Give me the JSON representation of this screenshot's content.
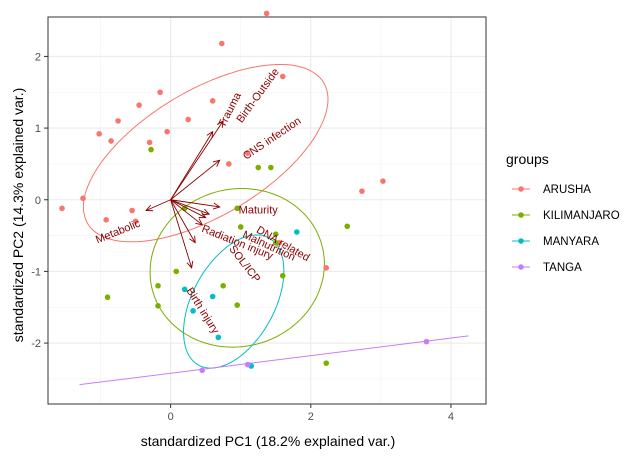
{
  "chart_data": {
    "type": "scatter",
    "subtype": "pca-biplot",
    "title": "",
    "xlabel": "standardized PC1 (18.2% explained var.)",
    "ylabel": "standardized PC2 (14.3% explained var.)",
    "xlim": [
      -1.75,
      4.5
    ],
    "ylim": [
      -2.85,
      2.55
    ],
    "xticks": [
      0,
      2,
      4
    ],
    "yticks": [
      -2,
      -1,
      0,
      1,
      2
    ],
    "grid": true,
    "legend_title": "groups",
    "legend_position": "right",
    "groups": [
      {
        "name": "ARUSHA",
        "color": "#F8766D",
        "points": [
          [
            1.37,
            2.6
          ],
          [
            0.73,
            2.18
          ],
          [
            1.6,
            1.72
          ],
          [
            -0.15,
            1.5
          ],
          [
            -0.45,
            1.32
          ],
          [
            0.6,
            1.38
          ],
          [
            0.25,
            1.12
          ],
          [
            -0.75,
            1.1
          ],
          [
            -1.02,
            0.92
          ],
          [
            -0.85,
            0.82
          ],
          [
            -0.3,
            0.8
          ],
          [
            -0.05,
            0.95
          ],
          [
            1.1,
            0.65
          ],
          [
            0.83,
            0.5
          ],
          [
            3.03,
            0.26
          ],
          [
            2.73,
            0.12
          ],
          [
            -1.25,
            0.02
          ],
          [
            -0.55,
            -0.15
          ],
          [
            -1.55,
            -0.12
          ],
          [
            -0.92,
            -0.28
          ],
          [
            -0.5,
            -0.3
          ],
          [
            1.55,
            -0.6
          ],
          [
            2.22,
            -0.95
          ]
        ]
      },
      {
        "name": "KILIMANJARO",
        "color": "#7CAE00",
        "points": [
          [
            -0.28,
            0.7
          ],
          [
            1.25,
            0.45
          ],
          [
            1.43,
            0.45
          ],
          [
            0.95,
            -0.12
          ],
          [
            0.2,
            -0.12
          ],
          [
            1.5,
            -0.48
          ],
          [
            1.5,
            -0.6
          ],
          [
            2.52,
            -0.37
          ],
          [
            1.0,
            -0.38
          ],
          [
            0.08,
            -1.0
          ],
          [
            -0.18,
            -1.2
          ],
          [
            1.6,
            -1.06
          ],
          [
            -0.9,
            -1.36
          ],
          [
            0.75,
            -1.2
          ],
          [
            -0.18,
            -1.48
          ],
          [
            0.95,
            -1.47
          ],
          [
            2.22,
            -2.28
          ]
        ]
      },
      {
        "name": "MANYARA",
        "color": "#00BFC4",
        "points": [
          [
            1.8,
            -0.45
          ],
          [
            0.2,
            -1.25
          ],
          [
            0.6,
            -1.35
          ],
          [
            0.32,
            -1.55
          ],
          [
            0.68,
            -1.92
          ],
          [
            1.15,
            -2.32
          ]
        ]
      },
      {
        "name": "TANGA",
        "color": "#C77CFF",
        "points": [
          [
            0.45,
            -2.38
          ],
          [
            1.1,
            -2.3
          ],
          [
            3.65,
            -1.98
          ]
        ]
      }
    ],
    "ellipses": [
      {
        "group": "ARUSHA",
        "center": [
          0.5,
          0.65
        ],
        "semi_axes": [
          1.95,
          0.88
        ],
        "rotation_deg": 30
      },
      {
        "group": "KILIMANJARO",
        "center": [
          0.95,
          -0.95
        ],
        "semi_axes": [
          1.25,
          1.1
        ],
        "rotation_deg": 12
      },
      {
        "group": "MANYARA",
        "center": [
          0.9,
          -1.42
        ],
        "semi_axes": [
          0.58,
          1.02
        ],
        "rotation_deg": -30
      }
    ],
    "tanga_line": [
      [
        -1.3,
        -2.58
      ],
      [
        4.25,
        -1.9
      ]
    ],
    "variables": [
      {
        "name": "Trauma",
        "x": 0.75,
        "y": 1.1,
        "label_pos": [
          0.85,
          1.25
        ],
        "angle": -63
      },
      {
        "name": "Birth-Outside",
        "x": 0.6,
        "y": 0.95,
        "label_pos": [
          1.25,
          1.45
        ],
        "angle": -54
      },
      {
        "name": "CNS infection",
        "x": 0.7,
        "y": 0.55,
        "label_pos": [
          1.45,
          0.85
        ],
        "angle": -34
      },
      {
        "name": "Maturity",
        "x": 0.7,
        "y": -0.1,
        "label_pos": [
          1.25,
          -0.15
        ],
        "angle": 0
      },
      {
        "name": "DNA related",
        "x": 0.55,
        "y": -0.2,
        "label_pos": [
          1.6,
          -0.62
        ],
        "angle": 30
      },
      {
        "name": "Malnutrition",
        "x": 0.5,
        "y": -0.25,
        "label_pos": [
          1.4,
          -0.65
        ],
        "angle": 25
      },
      {
        "name": "Radiation injury",
        "x": 0.45,
        "y": -0.35,
        "label_pos": [
          0.95,
          -0.6
        ],
        "angle": 22
      },
      {
        "name": "SOL/ICP",
        "x": 0.35,
        "y": -0.6,
        "label_pos": [
          1.05,
          -0.9
        ],
        "angle": 52
      },
      {
        "name": "Birth injury",
        "x": 0.3,
        "y": -0.95,
        "label_pos": [
          0.45,
          -1.55
        ],
        "angle": 58
      },
      {
        "name": "Metabolic",
        "x": -0.35,
        "y": -0.15,
        "label_pos": [
          -0.75,
          -0.45
        ],
        "angle": -22
      }
    ]
  }
}
